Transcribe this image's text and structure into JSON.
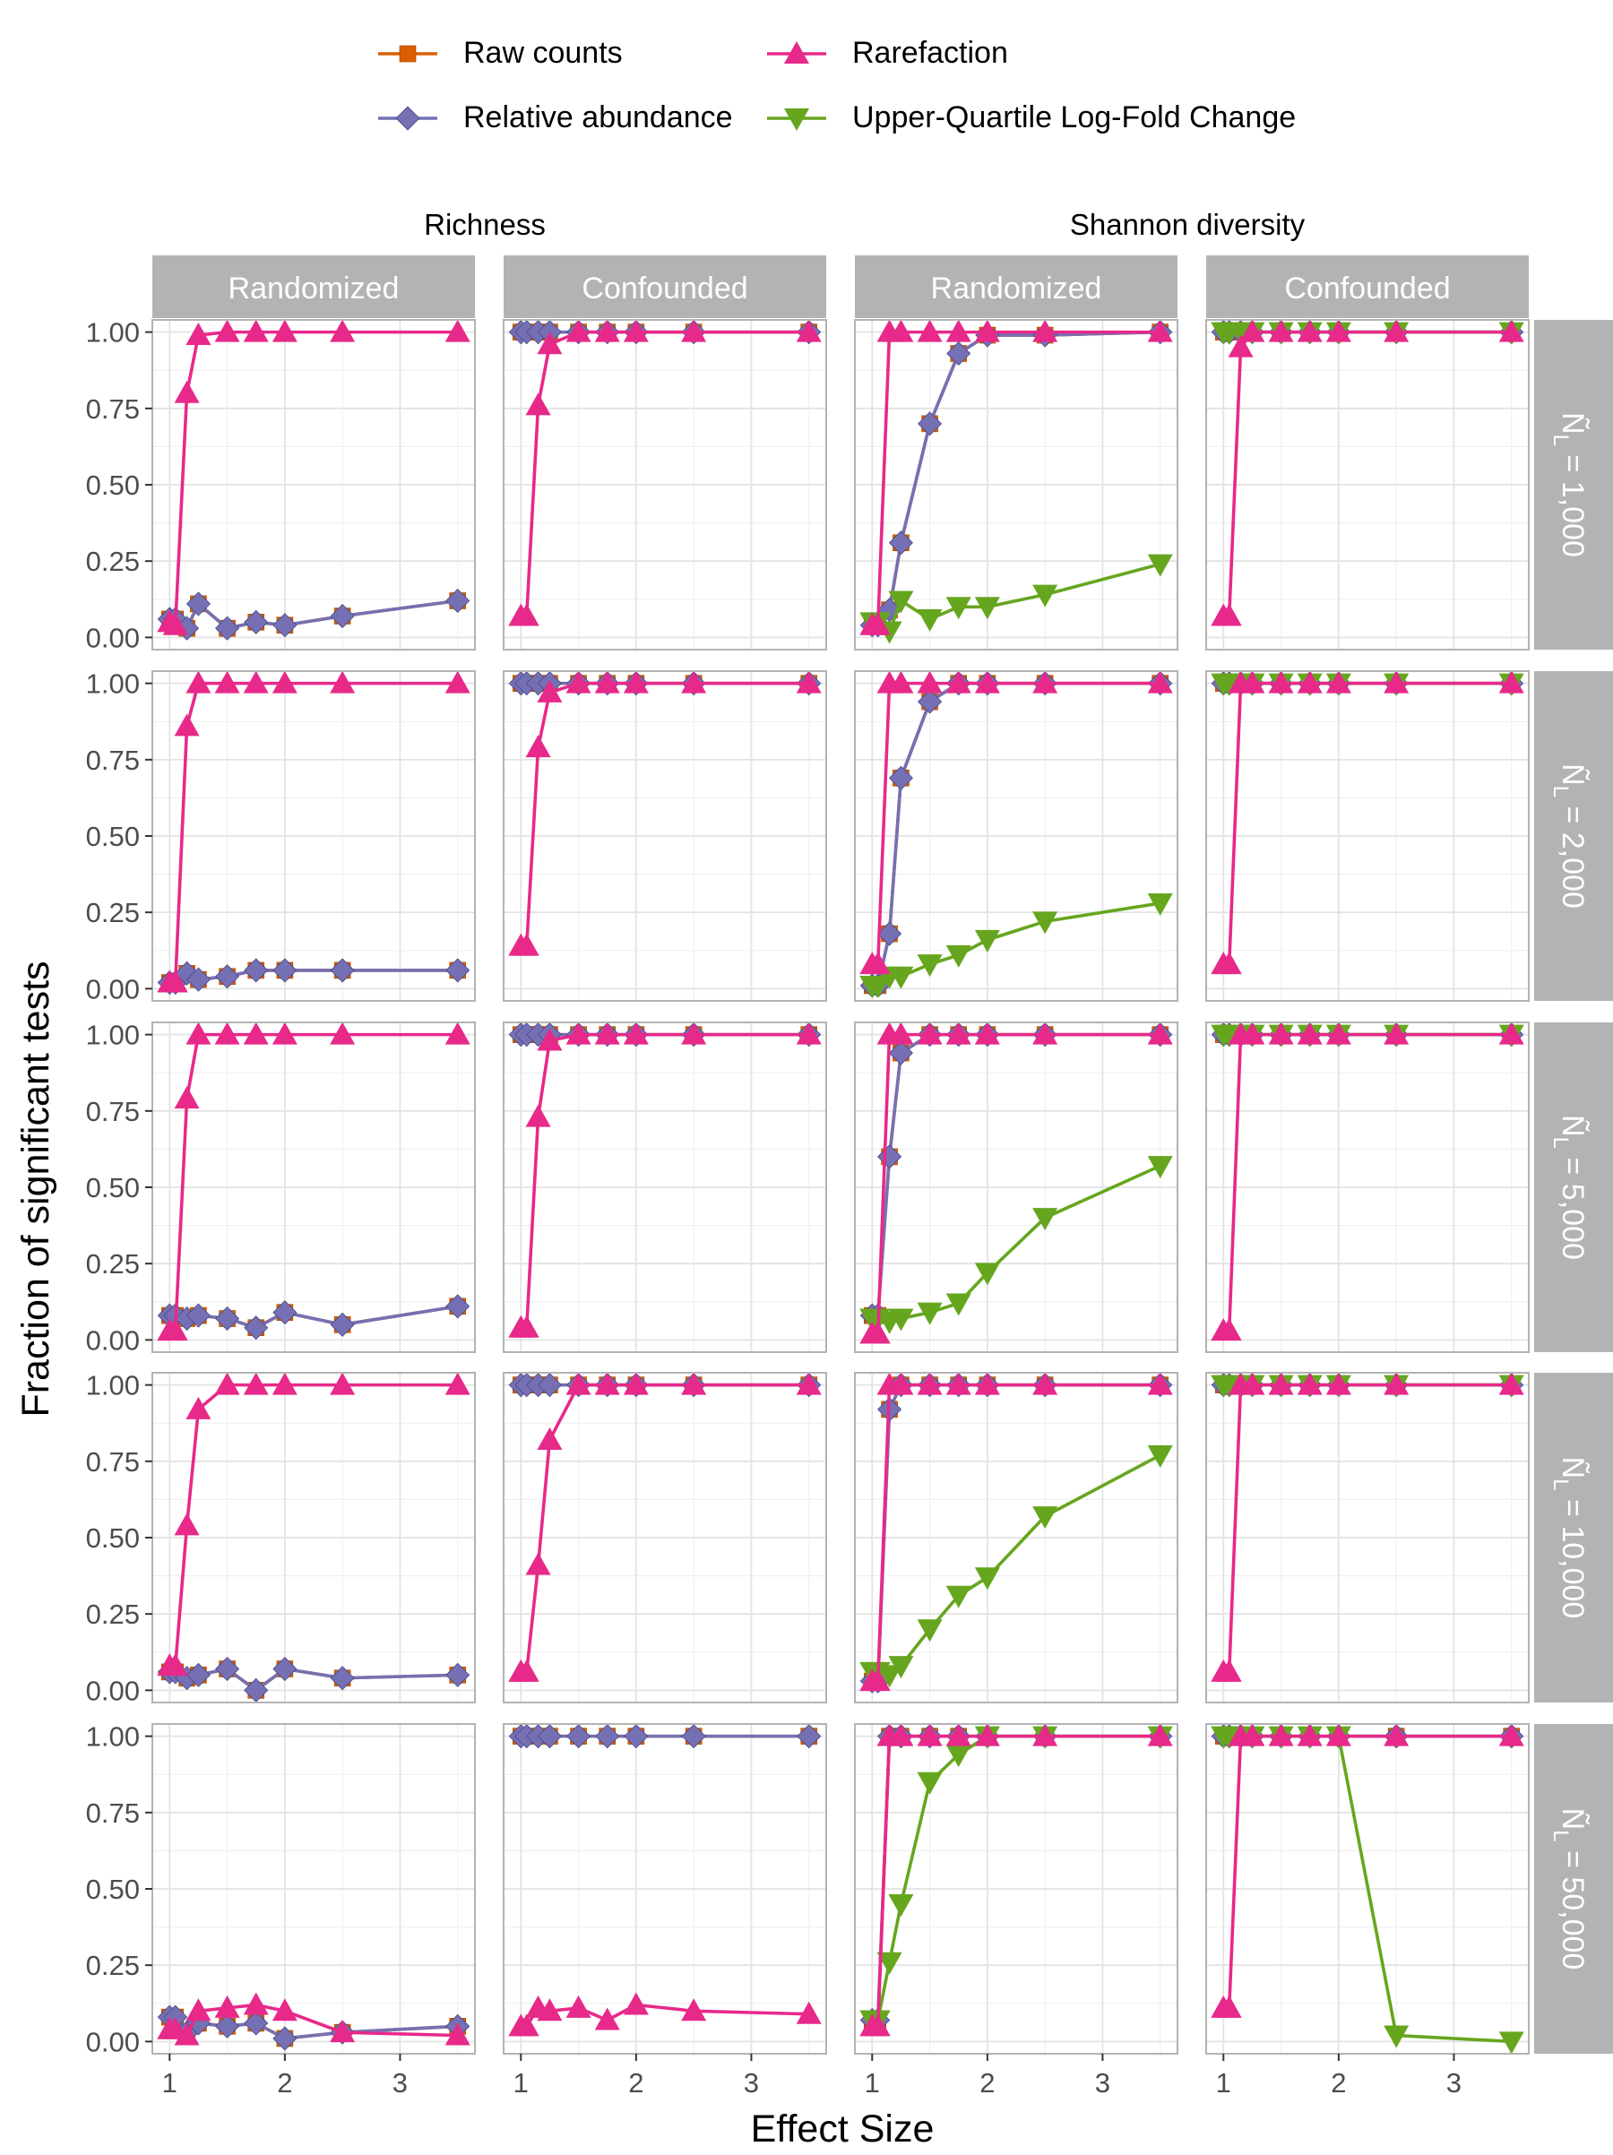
{
  "figure": {
    "ylabel": "Fraction of significant tests",
    "xlabel": "Effect Size"
  },
  "legend": {
    "items": [
      {
        "name": "Raw counts",
        "color": "#d95f02",
        "shape": "square"
      },
      {
        "name": "Rarefaction",
        "color": "#e7298a",
        "shape": "triangle-up"
      },
      {
        "name": "Relative abundance",
        "color": "#7570b3",
        "shape": "diamond"
      },
      {
        "name": "Upper-Quartile Log-Fold Change",
        "color": "#66a61e",
        "shape": "triangle-down"
      }
    ]
  },
  "column_groups": [
    "Richness",
    "Shannon diversity"
  ],
  "column_strips": [
    "Randomized",
    "Confounded",
    "Randomized",
    "Confounded"
  ],
  "row_strips": [
    "Ñ_L = 1,000",
    "Ñ_L = 2,000",
    "Ñ_L = 5,000",
    "Ñ_L = 10,000",
    "Ñ_L = 50,000"
  ],
  "row_strip_parts": [
    {
      "base": "Ñ",
      "sub": "L",
      "rest": " = 1,000"
    },
    {
      "base": "Ñ",
      "sub": "L",
      "rest": " = 2,000"
    },
    {
      "base": "Ñ",
      "sub": "L",
      "rest": " = 5,000"
    },
    {
      "base": "Ñ",
      "sub": "L",
      "rest": " = 10,000"
    },
    {
      "base": "Ñ",
      "sub": "L",
      "rest": " = 50,000"
    }
  ],
  "chart_data": {
    "type": "line",
    "facets": "rows x columns",
    "x": [
      1,
      1.05,
      1.15,
      1.25,
      1.5,
      1.75,
      2,
      2.5,
      3.5
    ],
    "xlim": [
      0.85,
      3.65
    ],
    "ylim": [
      -0.04,
      1.04
    ],
    "xticks": [
      "1",
      "2",
      "3"
    ],
    "yticks": [
      "0.00",
      "0.25",
      "0.50",
      "0.75",
      "1.00"
    ],
    "grid": true,
    "legend_position": "top",
    "panels": [
      [
        {
          "series": {
            "Raw counts": [
              0.06,
              0.06,
              0.03,
              0.11,
              0.03,
              0.05,
              0.04,
              0.07,
              0.12
            ],
            "Relative abundance": [
              0.06,
              0.06,
              0.03,
              0.11,
              0.03,
              0.05,
              0.04,
              0.07,
              0.12
            ],
            "Rarefaction": [
              0.05,
              0.04,
              0.8,
              0.99,
              1,
              1,
              1,
              1,
              1
            ]
          }
        },
        {
          "series": {
            "Raw counts": [
              1,
              1,
              1,
              1,
              1,
              1,
              1,
              1,
              1
            ],
            "Relative abundance": [
              1,
              1,
              1,
              1,
              1,
              1,
              1,
              1,
              1
            ],
            "Rarefaction": [
              0.07,
              0.07,
              0.76,
              0.96,
              1,
              1,
              1,
              1,
              1
            ]
          }
        },
        {
          "series": {
            "Raw counts": [
              0.04,
              0.04,
              0.09,
              0.31,
              0.7,
              0.93,
              0.99,
              0.99,
              1
            ],
            "Relative abundance": [
              0.04,
              0.04,
              0.09,
              0.31,
              0.7,
              0.93,
              0.99,
              0.99,
              1
            ],
            "Rarefaction": [
              0.04,
              0.04,
              1,
              1,
              1,
              1,
              1,
              1,
              1
            ],
            "Upper-Quartile Log-Fold Change": [
              0.05,
              0.05,
              0.02,
              0.12,
              0.06,
              0.1,
              0.1,
              0.14,
              0.24
            ]
          }
        },
        {
          "series": {
            "Raw counts": [
              1,
              1,
              1,
              1,
              1,
              1,
              1,
              1,
              1
            ],
            "Relative abundance": [
              1,
              1,
              1,
              1,
              1,
              1,
              1,
              1,
              1
            ],
            "Rarefaction": [
              0.07,
              0.07,
              0.95,
              1,
              1,
              1,
              1,
              1,
              1
            ],
            "Upper-Quartile Log-Fold Change": [
              1,
              1,
              1,
              1,
              1,
              1,
              1,
              1,
              1
            ]
          }
        }
      ],
      [
        {
          "series": {
            "Raw counts": [
              0.02,
              0.02,
              0.05,
              0.03,
              0.04,
              0.06,
              0.06,
              0.06,
              0.06
            ],
            "Relative abundance": [
              0.02,
              0.02,
              0.05,
              0.03,
              0.04,
              0.06,
              0.06,
              0.06,
              0.06
            ],
            "Rarefaction": [
              0.02,
              0.02,
              0.86,
              1,
              1,
              1,
              1,
              1,
              1
            ]
          }
        },
        {
          "series": {
            "Raw counts": [
              1,
              1,
              1,
              1,
              1,
              1,
              1,
              1,
              1
            ],
            "Relative abundance": [
              1,
              1,
              1,
              1,
              1,
              1,
              1,
              1,
              1
            ],
            "Rarefaction": [
              0.14,
              0.14,
              0.79,
              0.97,
              1,
              1,
              1,
              1,
              1
            ]
          }
        },
        {
          "series": {
            "Raw counts": [
              0.01,
              0.01,
              0.18,
              0.69,
              0.94,
              1,
              1,
              1,
              1
            ],
            "Relative abundance": [
              0.01,
              0.01,
              0.18,
              0.69,
              0.94,
              1,
              1,
              1,
              1
            ],
            "Rarefaction": [
              0.08,
              0.08,
              1,
              1,
              1,
              1,
              1,
              1,
              1
            ],
            "Upper-Quartile Log-Fold Change": [
              0.01,
              0.01,
              0.04,
              0.04,
              0.08,
              0.11,
              0.16,
              0.22,
              0.28
            ]
          }
        },
        {
          "series": {
            "Raw counts": [
              1,
              1,
              1,
              1,
              1,
              1,
              1,
              1,
              1
            ],
            "Relative abundance": [
              1,
              1,
              1,
              1,
              1,
              1,
              1,
              1,
              1
            ],
            "Rarefaction": [
              0.08,
              0.08,
              1,
              1,
              1,
              1,
              1,
              1,
              1
            ],
            "Upper-Quartile Log-Fold Change": [
              1,
              1,
              1,
              1,
              1,
              1,
              1,
              1,
              1
            ]
          }
        }
      ],
      [
        {
          "series": {
            "Raw counts": [
              0.08,
              0.08,
              0.07,
              0.08,
              0.07,
              0.04,
              0.09,
              0.05,
              0.11
            ],
            "Relative abundance": [
              0.08,
              0.08,
              0.07,
              0.08,
              0.07,
              0.04,
              0.09,
              0.05,
              0.11
            ],
            "Rarefaction": [
              0.03,
              0.03,
              0.79,
              1,
              1,
              1,
              1,
              1,
              1
            ]
          }
        },
        {
          "series": {
            "Raw counts": [
              1,
              1,
              1,
              1,
              1,
              1,
              1,
              1,
              1
            ],
            "Relative abundance": [
              1,
              1,
              1,
              1,
              1,
              1,
              1,
              1,
              1
            ],
            "Rarefaction": [
              0.04,
              0.04,
              0.73,
              0.98,
              1,
              1,
              1,
              1,
              1
            ]
          }
        },
        {
          "series": {
            "Raw counts": [
              0.08,
              0.08,
              0.6,
              0.94,
              1,
              1,
              1,
              1,
              1
            ],
            "Relative abundance": [
              0.08,
              0.08,
              0.6,
              0.94,
              1,
              1,
              1,
              1,
              1
            ],
            "Rarefaction": [
              0.02,
              0.02,
              1,
              1,
              1,
              1,
              1,
              1,
              1
            ],
            "Upper-Quartile Log-Fold Change": [
              0.07,
              0.07,
              0.06,
              0.07,
              0.09,
              0.12,
              0.22,
              0.4,
              0.57
            ]
          }
        },
        {
          "series": {
            "Raw counts": [
              1,
              1,
              1,
              1,
              1,
              1,
              1,
              1,
              1
            ],
            "Relative abundance": [
              1,
              1,
              1,
              1,
              1,
              1,
              1,
              1,
              1
            ],
            "Rarefaction": [
              0.03,
              0.03,
              1,
              1,
              1,
              1,
              1,
              1,
              1
            ],
            "Upper-Quartile Log-Fold Change": [
              1,
              1,
              1,
              1,
              1,
              1,
              1,
              1,
              1
            ]
          }
        }
      ],
      [
        {
          "series": {
            "Raw counts": [
              0.06,
              0.06,
              0.04,
              0.05,
              0.07,
              0,
              0.07,
              0.04,
              0.05
            ],
            "Relative abundance": [
              0.06,
              0.06,
              0.04,
              0.05,
              0.07,
              0,
              0.07,
              0.04,
              0.05
            ],
            "Rarefaction": [
              0.08,
              0.08,
              0.54,
              0.92,
              1,
              1,
              1,
              1,
              1
            ]
          }
        },
        {
          "series": {
            "Raw counts": [
              1,
              1,
              1,
              1,
              1,
              1,
              1,
              1,
              1
            ],
            "Relative abundance": [
              1,
              1,
              1,
              1,
              1,
              1,
              1,
              1,
              1
            ],
            "Rarefaction": [
              0.06,
              0.06,
              0.41,
              0.82,
              1,
              1,
              1,
              1,
              1
            ]
          }
        },
        {
          "series": {
            "Raw counts": [
              0.03,
              0.03,
              0.92,
              1,
              1,
              1,
              1,
              1,
              1
            ],
            "Relative abundance": [
              0.03,
              0.03,
              0.92,
              1,
              1,
              1,
              1,
              1,
              1
            ],
            "Rarefaction": [
              0.03,
              0.03,
              1,
              1,
              1,
              1,
              1,
              1,
              1
            ],
            "Upper-Quartile Log-Fold Change": [
              0.06,
              0.06,
              0.05,
              0.08,
              0.2,
              0.31,
              0.37,
              0.57,
              0.77
            ]
          }
        },
        {
          "series": {
            "Raw counts": [
              1,
              1,
              1,
              1,
              1,
              1,
              1,
              1,
              1
            ],
            "Relative abundance": [
              1,
              1,
              1,
              1,
              1,
              1,
              1,
              1,
              1
            ],
            "Rarefaction": [
              0.06,
              0.06,
              1,
              1,
              1,
              1,
              1,
              1,
              1
            ],
            "Upper-Quartile Log-Fold Change": [
              1,
              1,
              1,
              1,
              1,
              1,
              1,
              1,
              1
            ]
          }
        }
      ],
      [
        {
          "series": {
            "Raw counts": [
              0.08,
              0.08,
              0.03,
              0.06,
              0.05,
              0.06,
              0.01,
              0.03,
              0.05
            ],
            "Relative abundance": [
              0.08,
              0.08,
              0.03,
              0.06,
              0.05,
              0.06,
              0.01,
              0.03,
              0.05
            ],
            "Rarefaction": [
              0.04,
              0.04,
              0.02,
              0.1,
              0.11,
              0.12,
              0.1,
              0.03,
              0.02
            ]
          }
        },
        {
          "series": {
            "Raw counts": [
              1,
              1,
              1,
              1,
              1,
              1,
              1,
              1,
              1
            ],
            "Relative abundance": [
              1,
              1,
              1,
              1,
              1,
              1,
              1,
              1,
              1
            ],
            "Rarefaction": [
              0.05,
              0.05,
              0.11,
              0.1,
              0.11,
              0.07,
              0.12,
              0.1,
              0.09
            ]
          }
        },
        {
          "series": {
            "Raw counts": [
              0.07,
              0.07,
              1,
              1,
              1,
              1,
              1,
              1,
              1
            ],
            "Relative abundance": [
              0.07,
              0.07,
              1,
              1,
              1,
              1,
              1,
              1,
              1
            ],
            "Rarefaction": [
              0.05,
              0.05,
              1,
              1,
              1,
              1,
              1,
              1,
              1
            ],
            "Upper-Quartile Log-Fold Change": [
              0.07,
              0.07,
              0.26,
              0.45,
              0.85,
              0.94,
              1,
              1,
              1
            ]
          }
        },
        {
          "series": {
            "Raw counts": [
              1,
              1,
              1,
              1,
              1,
              1,
              1,
              1,
              1
            ],
            "Relative abundance": [
              1,
              1,
              1,
              1,
              1,
              1,
              1,
              1,
              1
            ],
            "Rarefaction": [
              0.11,
              0.11,
              1,
              1,
              1,
              1,
              1,
              1,
              1
            ],
            "Upper-Quartile Log-Fold Change": [
              1,
              1,
              1,
              1,
              1,
              1,
              1,
              0.02,
              0
            ]
          }
        }
      ]
    ]
  }
}
